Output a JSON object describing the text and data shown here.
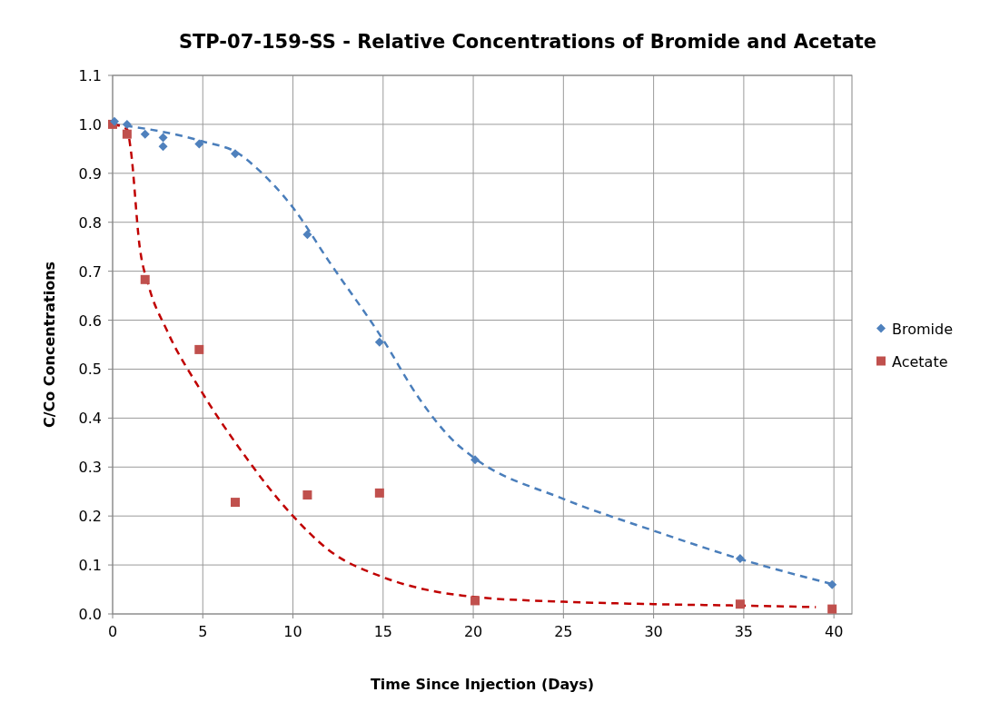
{
  "chart_data": {
    "type": "scatter",
    "title": "STP-07-159-SS - Relative Concentrations of Bromide and Acetate",
    "xlabel": "Time Since Injection (Days)",
    "ylabel": "C/Co Concentrations",
    "xlim": [
      0,
      41
    ],
    "xticks": [
      0,
      5,
      10,
      15,
      20,
      25,
      30,
      35,
      40
    ],
    "ylim": [
      0,
      1.1
    ],
    "yticks": [
      {
        "value": 0,
        "label": "0.0"
      },
      {
        "value": 0.1,
        "label": "0.1"
      },
      {
        "value": 0.2,
        "label": "0.2"
      },
      {
        "value": 0.3,
        "label": "0.3"
      },
      {
        "value": 0.4,
        "label": "0.4"
      },
      {
        "value": 0.5,
        "label": "0.5"
      },
      {
        "value": 0.6,
        "label": "0.6"
      },
      {
        "value": 0.7,
        "label": "0.7"
      },
      {
        "value": 0.8,
        "label": "0.8"
      },
      {
        "value": 0.9,
        "label": "0.9"
      },
      {
        "value": 1.0,
        "label": "1.0"
      },
      {
        "value": 1.1,
        "label": "1.1"
      }
    ],
    "grid": true,
    "legend": "right",
    "series": [
      {
        "name": "Bromide",
        "marker": "diamond",
        "color": "#4f81bd",
        "x": [
          0.1,
          0.8,
          1.8,
          2.8,
          2.8,
          4.8,
          6.8,
          10.8,
          14.8,
          20.1,
          34.8,
          39.9
        ],
        "values": [
          1.006,
          1.0,
          0.98,
          0.973,
          0.955,
          0.96,
          0.94,
          0.775,
          0.555,
          0.315,
          0.113,
          0.06
        ]
      },
      {
        "name": "Acetate",
        "marker": "square",
        "color": "#c0504d",
        "x": [
          0,
          0.8,
          1.8,
          4.8,
          6.8,
          10.8,
          14.8,
          20.1,
          34.8,
          39.9
        ],
        "values": [
          1.0,
          0.98,
          0.683,
          0.54,
          0.228,
          0.243,
          0.247,
          0.027,
          0.02,
          0.01
        ]
      },
      {
        "type": "line",
        "line_style": "dashed",
        "color": "#4a7ebb",
        "x": [
          0,
          2,
          5,
          7,
          8,
          10,
          12,
          15,
          17,
          19,
          20,
          25,
          30,
          35,
          40
        ],
        "values": [
          1.0,
          0.99,
          0.965,
          0.94,
          0.91,
          0.83,
          0.72,
          0.56,
          0.44,
          0.35,
          0.32,
          0.235,
          0.17,
          0.11,
          0.06
        ]
      },
      {
        "type": "line",
        "line_style": "dashed",
        "color": "#c00000",
        "x": [
          0,
          0.8,
          1,
          1.5,
          2,
          3,
          5,
          7,
          10,
          12,
          15,
          18,
          20,
          25,
          30,
          35,
          39
        ],
        "values": [
          1.0,
          0.99,
          0.95,
          0.75,
          0.67,
          0.58,
          0.45,
          0.34,
          0.2,
          0.13,
          0.075,
          0.045,
          0.035,
          0.025,
          0.02,
          0.017,
          0.014
        ]
      }
    ]
  }
}
